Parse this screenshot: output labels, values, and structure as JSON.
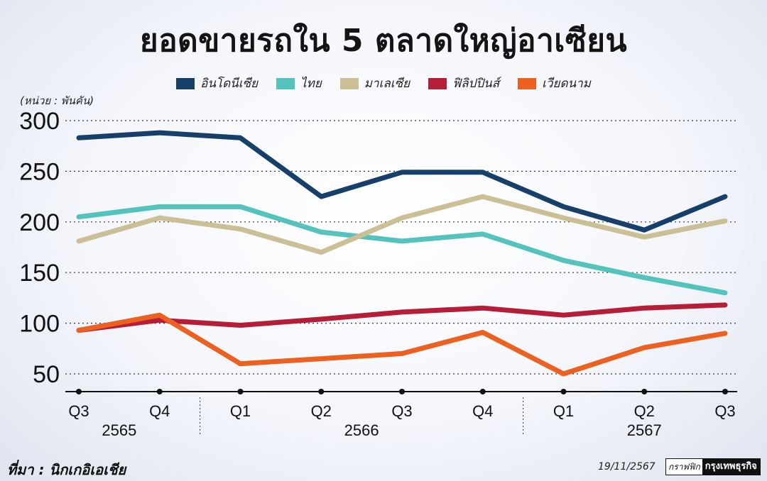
{
  "chart_data": {
    "type": "line",
    "title": "ยอดขายรถใน 5 ตลาดใหญ่อาเซียน",
    "unit_label": "(หน่วย : พันคัน)",
    "categories": [
      "Q3",
      "Q4",
      "Q1",
      "Q2",
      "Q3",
      "Q4",
      "Q1",
      "Q2",
      "Q3"
    ],
    "year_groups": [
      {
        "label": "2565",
        "start": 0,
        "end": 1
      },
      {
        "label": "2566",
        "start": 2,
        "end": 5
      },
      {
        "label": "2567",
        "start": 6,
        "end": 8
      }
    ],
    "yticks": [
      50,
      100,
      150,
      200,
      250,
      300
    ],
    "ylim": [
      38,
      305
    ],
    "grid": "horizontal-dotted",
    "legend_position": "top-center",
    "series": [
      {
        "name": "อินโดนีเซีย",
        "color": "#173f6b",
        "values": [
          283,
          288,
          283,
          225,
          249,
          249,
          215,
          192,
          225
        ]
      },
      {
        "name": "ไทย",
        "color": "#55c3bd",
        "values": [
          205,
          215,
          215,
          190,
          181,
          188,
          162,
          145,
          130
        ]
      },
      {
        "name": "มาเลเซีย",
        "color": "#cbbf95",
        "values": [
          181,
          204,
          193,
          170,
          204,
          225,
          204,
          185,
          201
        ]
      },
      {
        "name": "ฟิลิปปินส์",
        "color": "#b61d37",
        "values": [
          93,
          103,
          98,
          104,
          111,
          115,
          108,
          115,
          118
        ]
      },
      {
        "name": "เวียดนาม",
        "color": "#ec6020",
        "values": [
          93,
          108,
          60,
          65,
          70,
          91,
          50,
          76,
          90
        ]
      }
    ]
  },
  "footer": {
    "source": "ที่มา : นิกเกอิเอเชีย",
    "date": "19/11/2567",
    "credit_prefix": "กราฟฟิก",
    "credit_brand": "กรุงเทพธุรกิจ"
  }
}
